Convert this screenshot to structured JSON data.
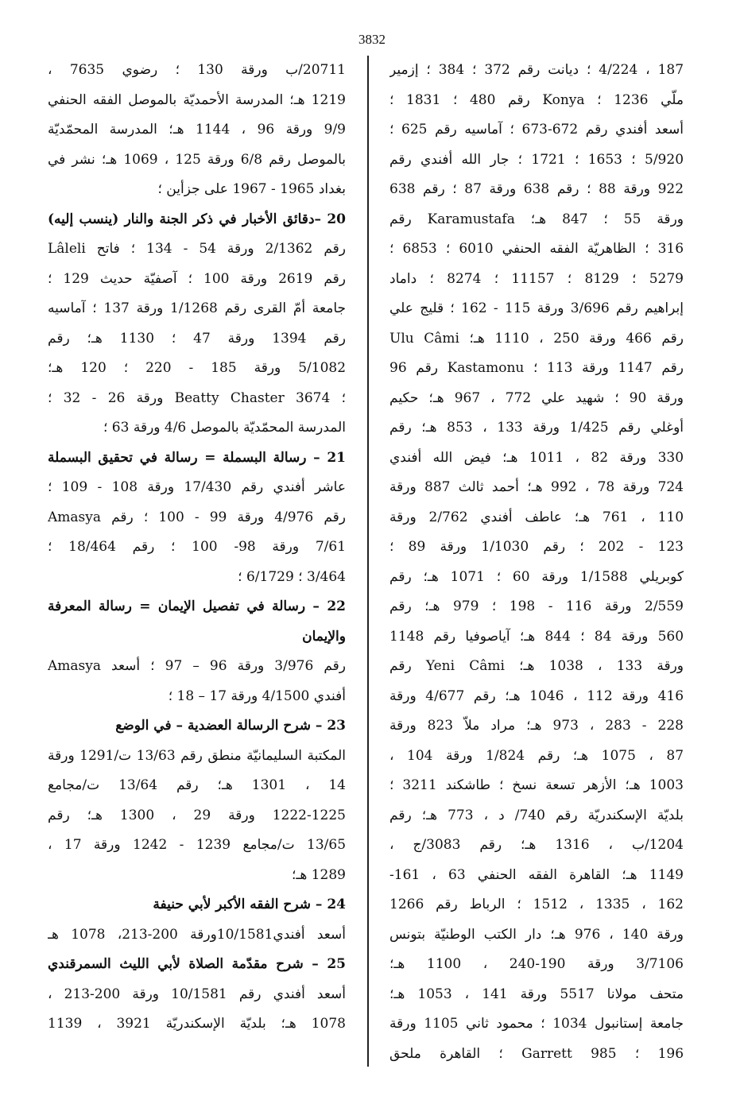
{
  "page_number": "3832",
  "right_column": [
    {
      "text": "187 ، 4/224 ؛ ديانت رقم 372 ؛ 384 ؛ إزمير",
      "heading": false
    },
    {
      "text": "ملّي 1236 ؛ Konya رقم 480 ؛ 1831 ؛",
      "heading": false
    },
    {
      "text": "أسعد أفندي رقم 672-673 ؛ آماسيه رقم 625 ؛",
      "heading": false
    },
    {
      "text": "5/920 ؛ 1653 ؛ 1721 ؛ جار الله أفندي رقم",
      "heading": false
    },
    {
      "text": "922 ورقة 88 ؛ رقم 638 ورقة 87 ؛ رقم 638",
      "heading": false
    },
    {
      "text": "ورقة 55 ؛ 847 هـ؛ Karamustafa رقم",
      "heading": false
    },
    {
      "text": "316 ؛ الظاهريّة الفقه الحنفي 6010 ؛ 6853 ؛",
      "heading": false
    },
    {
      "text": "5279 ؛ 8129 ؛ 11157 ؛ 8274 ؛ داماد",
      "heading": false
    },
    {
      "text": "إبراهيم رقم 3/696 ورقة 115 - 162 ؛ قليج علي",
      "heading": false
    },
    {
      "text": "رقم 466 ورقة 250 ، 1110 هـ؛ Ulu Câmi",
      "heading": false
    },
    {
      "text": "رقم 1147 ورقة 113 ؛ Kastamonu رقم 96",
      "heading": false
    },
    {
      "text": "ورقة 90 ؛ شهيد علي 772 ، 967 هـ؛ حكيم",
      "heading": false
    },
    {
      "text": "أوغلي رقم 1/425 ورقة 133 ، 853 هـ؛ رقم",
      "heading": false
    },
    {
      "text": "330 ورقة 82 ، 1011 هـ؛ فيض الله أفندي",
      "heading": false
    },
    {
      "text": "724 ورقة 78 ، 992 هـ؛ أحمد ثالث 887 ورقة",
      "heading": false
    },
    {
      "text": "110 ، 761 هـ؛ عاطف أفندي 2/762 ورقة",
      "heading": false
    },
    {
      "text": "123 - 202 ؛ رقم 1/1030 ورقة 89 ؛",
      "heading": false
    },
    {
      "text": "كوبريلي 1/1588 ورقة 60 ؛ 1071 هـ؛ رقم",
      "heading": false
    },
    {
      "text": "2/559 ورقة 116 - 198 ؛ 979 هـ؛ رقم",
      "heading": false
    },
    {
      "text": "560 ورقة 84 ؛ 844 هـ؛ آياصوفيا رقم 1148",
      "heading": false
    },
    {
      "text": "ورقة 133 ، 1038 هـ؛ Yeni Câmi رقم",
      "heading": false
    },
    {
      "text": "416 ورقة 112 ، 1046 هـ؛ رقم 4/677 ورقة",
      "heading": false
    },
    {
      "text": "228 - 283 ، 973 هـ؛ مراد ملاّ 823 ورقة",
      "heading": false
    },
    {
      "text": "87 ، 1075 هـ؛ رقم 1/824 ورقة 104 ،",
      "heading": false
    },
    {
      "text": "1003 هـ؛ الأزهر تسعة نسخ ؛ طاشكند 3211 ؛",
      "heading": false
    },
    {
      "text": "بلديّة الإسكندريّة رقم 740/ د ، 773 هـ؛ رقم",
      "heading": false
    },
    {
      "text": "1204/ب ، 1316 هـ؛ رقم 3083/ج ،",
      "heading": false
    },
    {
      "text": "1149 هـ؛ القاهرة الفقه الحنفي 63 ، 161-",
      "heading": false
    },
    {
      "text": "162 ، 1335 ، 1512 ؛ الرباط رقم 1266",
      "heading": false
    },
    {
      "text": "ورقة 140 ، 976 هـ؛ دار الكتب الوطنيّة بتونس",
      "heading": false
    },
    {
      "text": "3/7106 ورقة 190-240 ، 1100 هـ؛",
      "heading": false
    },
    {
      "text": "متحف مولانا 5517 ورقة 141 ، 1053 هـ؛",
      "heading": false
    },
    {
      "text": "جامعة إستانبول 1034 ؛ محمود ثاني 1105 ورقة",
      "heading": false
    },
    {
      "text": "196 ؛ 985 Garrett ؛ القاهرة ملحق",
      "heading": false
    }
  ],
  "left_column": [
    {
      "text": "20711/ب ورقة 130 ؛ رضوي 7635 ،",
      "heading": false
    },
    {
      "text": "1219 هـ؛ المدرسة الأحمديّة بالموصل الفقه الحنفي",
      "heading": false
    },
    {
      "text": "9/9 ورقة 96 ، 1144 هـ؛ المدرسة المحمّديّة",
      "heading": false
    },
    {
      "text": "بالموصل رقم 6/8 ورقة 125 ، 1069 هـ؛ نشر في",
      "heading": false
    },
    {
      "text": "بغداد 1965 - 1967 على جزأين ؛",
      "heading": false,
      "short": true
    },
    {
      "text": "20 –دقائق الأخبار في ذكر الجنة والنار (ينسب إليه)",
      "heading": true
    },
    {
      "text": "Lâleli رقم 2/1362 ورقة 54 - 134 ؛ فاتح",
      "heading": false
    },
    {
      "text": "رقم 2619 ورقة 100 ؛ آصفيّة حديث 129 ؛",
      "heading": false
    },
    {
      "text": "جامعة أمّ القرى رقم 1/1268 ورقة 137 ؛ آماسيه",
      "heading": false
    },
    {
      "text": "رقم 1394 ورقة 47 ؛ 1130 هـ؛ رقم",
      "heading": false
    },
    {
      "text": "5/1082 ورقة 185 - 220 ؛ 120 هـ؛",
      "heading": false
    },
    {
      "text": "؛ 3674 Beatty Chaster ورقة 26 - 32 ؛",
      "heading": false
    },
    {
      "text": "المدرسة المحمّديّة بالموصل 4/6 ورقة 63 ؛",
      "heading": false,
      "short": true
    },
    {
      "text": "21 – رسالة البسملة = رسالة في تحقيق البسملة",
      "heading": true
    },
    {
      "text": "عاشر أفندي رقم 17/430 ورقة 108 - 109 ؛",
      "heading": false
    },
    {
      "text": "Amasya رقم 4/976 ورقة 99 - 100 ؛ رقم",
      "heading": false
    },
    {
      "text": "7/61 ورقة 98- 100 ؛ رقم 18/464 ؛",
      "heading": false
    },
    {
      "text": "3/464 ؛ 6/1729 ؛",
      "heading": false,
      "short": true
    },
    {
      "text": "22 – رسالة في تفصيل الإيمان = رسالة المعرفة",
      "heading": true
    },
    {
      "text": "والإيمان",
      "heading": true,
      "short": true
    },
    {
      "text": "Amasya رقم 3/976 ورقة 96 – 97 ؛ أسعد",
      "heading": false
    },
    {
      "text": "أفندي 4/1500 ورقة 17 – 18 ؛",
      "heading": false,
      "short": true
    },
    {
      "text": "23 – شرح الرسالة العضدية – في الوضع",
      "heading": true,
      "short": true
    },
    {
      "text": "المكتبة السليمانيّة منطق رقم 13/63 ت/1291 ورقة",
      "heading": false
    },
    {
      "text": "14 ، 1301 هـ؛ رقم 13/64 ت/مجامع",
      "heading": false
    },
    {
      "text": "1222-1225 ورقة 29 ، 1300 هـ؛ رقم",
      "heading": false
    },
    {
      "text": "13/65 ت/مجامع 1239 - 1242 ورقة 17 ،",
      "heading": false
    },
    {
      "text": "1289 هـ؛",
      "heading": false,
      "short": true
    },
    {
      "text": "24 – شرح الفقه الأكبر لأبي حنيفة",
      "heading": true,
      "short": true
    },
    {
      "text": "أسعد أفندي10/1581ورقة 200-213، 1078 هـ",
      "heading": false
    },
    {
      "text": "25 – شرح مقدّمة الصلاة لأبي الليث السمرقندي",
      "heading": true
    },
    {
      "text": "أسعد أفندي رقم 10/1581 ورقة 200-213 ،",
      "heading": false
    },
    {
      "text": "1078 هـ؛ بلديّة الإسكندريّة 3921 ، 1139",
      "heading": false
    }
  ]
}
